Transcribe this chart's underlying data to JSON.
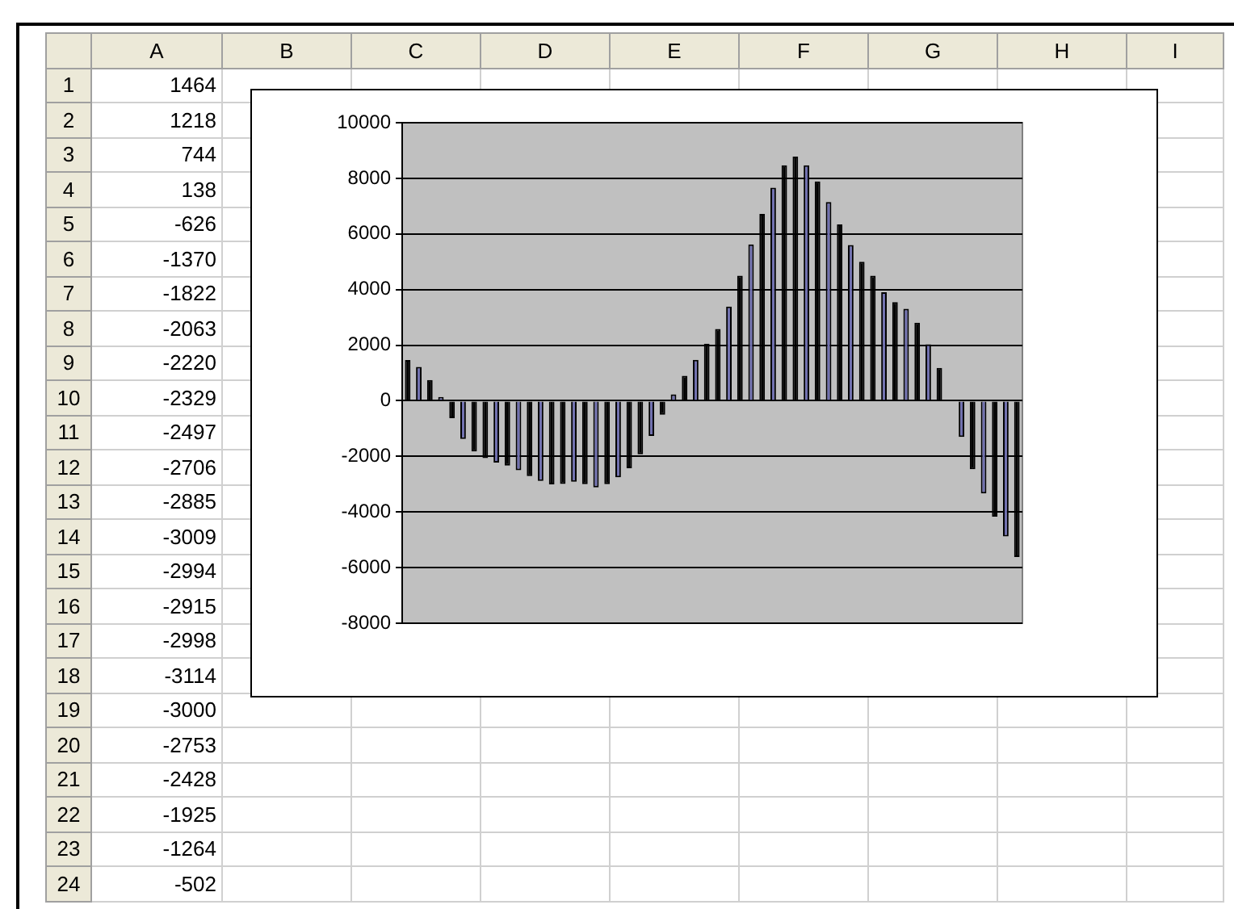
{
  "chart_data": {
    "type": "bar",
    "categories": [
      null,
      null,
      null,
      null,
      null,
      null,
      null,
      null,
      null,
      null,
      null,
      null,
      null,
      null,
      null,
      null,
      null,
      null,
      null,
      null,
      null,
      null,
      null,
      null,
      null,
      null,
      null,
      null,
      null,
      null,
      null,
      null,
      null,
      null,
      null,
      null,
      null,
      null,
      null,
      null,
      null,
      null,
      null,
      null,
      null,
      null,
      null,
      null,
      null,
      null,
      null,
      null,
      null,
      null,
      null,
      null
    ],
    "series": [
      {
        "values": [
          1464,
          1218,
          744,
          138,
          -626,
          -1370,
          -1822,
          -2063,
          -2220,
          -2329,
          -2497,
          -2706,
          -2885,
          -3009,
          -2994,
          -2915,
          -2998,
          -3114,
          -3000,
          -2753,
          -2428,
          -1925,
          -1264,
          -502,
          230,
          900,
          1470,
          2050,
          2580,
          3390,
          4500,
          5620,
          6720,
          7660,
          8470,
          8780,
          8470,
          7890,
          7150,
          6340,
          5600,
          5000,
          4500,
          3900,
          3550,
          3310,
          2810,
          2030,
          1180,
          0,
          -1300,
          -2460,
          -3330,
          -4170,
          -4880,
          -5620
        ],
        "colors": [
          "#000000",
          "#7070b0",
          "#000000",
          "#7070b0",
          "#000000",
          "#7070b0",
          "#000000",
          "#000000",
          "#7070b0",
          "#000000",
          "#7070b0",
          "#000000",
          "#7070b0",
          "#000000",
          "#000000",
          "#7070b0",
          "#000000",
          "#7070b0",
          "#000000",
          "#7070b0",
          "#000000",
          "#000000",
          "#7070b0",
          "#000000",
          "#7070b0",
          "#000000",
          "#7070b0",
          "#000000",
          "#000000",
          "#7070b0",
          "#000000",
          "#7070b0",
          "#000000",
          "#7070b0",
          "#000000",
          "#000000",
          "#7070b0",
          "#000000",
          "#7070b0",
          "#000000",
          "#7070b0",
          "#000000",
          "#000000",
          "#7070b0",
          "#000000",
          "#7070b0",
          "#000000",
          "#7070b0",
          "#000000",
          "#7070b0",
          "#7070b0",
          "#000000",
          "#7070b0",
          "#000000",
          "#7070b0",
          "#000000"
        ]
      }
    ],
    "ylim": [
      -8000,
      10000
    ],
    "yticks": [
      -8000,
      -6000,
      -4000,
      -2000,
      0,
      2000,
      4000,
      6000,
      8000,
      10000
    ],
    "grid": "y",
    "legend": false,
    "tick_labels": "y",
    "annotations": [
      "A",
      "B",
      "C",
      "D",
      "E",
      "F",
      "G",
      "H",
      "I",
      "1",
      "1464",
      "2",
      "1218",
      "3",
      "744",
      "4",
      "138",
      "5",
      "-626",
      "6",
      "-1370",
      "7",
      "-1822",
      "8",
      "-2063",
      "9",
      "-2220",
      "10",
      "-2329",
      "11",
      "-2497",
      "12",
      "-2706",
      "13",
      "-2885",
      "14",
      "-3009",
      "15",
      "-2994",
      "16",
      "-2915",
      "17",
      "-2998",
      "18",
      "-3114",
      "19",
      "-3000",
      "20",
      "-2753",
      "21",
      "-2428",
      "22",
      "-1925",
      "23",
      "-1264",
      "24",
      "-502"
    ]
  }
}
